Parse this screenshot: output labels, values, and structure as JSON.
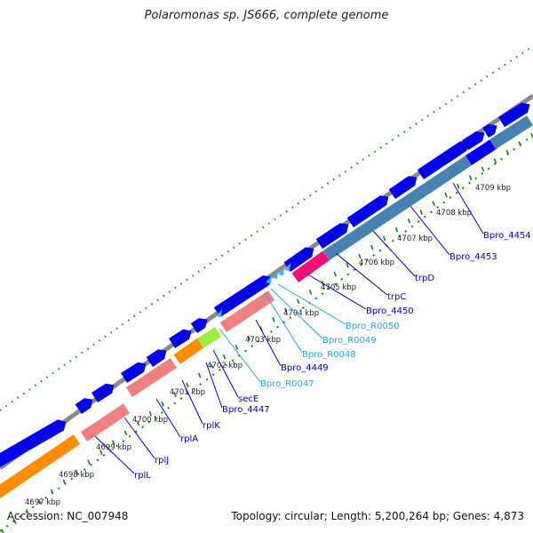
{
  "title": "Polaromonas sp. JS666, complete genome",
  "footer": {
    "accession": "Accession: NC_007948",
    "summary": "Topology: circular; Length: 5,200,264 bp; Genes: 4,873"
  },
  "colors": {
    "backbone": "#8a8a8a",
    "dots_outer": "#228b22",
    "ticks": "#1a7a1a",
    "cds_forward": "#0000ee",
    "cds_reverse": "#4682b4",
    "rpl_operon": "#f08080",
    "orange": "#ff8c00",
    "secE": "#99ee44",
    "trpD_magenta": "#ee1177",
    "rna": "#33bbee",
    "label_gene": "#0000cc",
    "label_rna": "#22aadd"
  },
  "scale_labels": [
    "4697 kbp",
    "4698 kbp",
    "4699 kbp",
    "4700 kbp",
    "4701 kbp",
    "4702 kbp",
    "4703 kbp",
    "4704 kbp",
    "4705 kbp",
    "4706 kbp",
    "4707 kbp",
    "4708 kbp",
    "4709 kbp"
  ],
  "gene_labels": [
    {
      "name": "rplL",
      "type": "gene"
    },
    {
      "name": "rplJ",
      "type": "gene"
    },
    {
      "name": "rplA",
      "type": "gene"
    },
    {
      "name": "rplK",
      "type": "gene"
    },
    {
      "name": "Bpro_4447",
      "type": "gene"
    },
    {
      "name": "secE",
      "type": "gene"
    },
    {
      "name": "Bpro_R0047",
      "type": "rna"
    },
    {
      "name": "Bpro_4449",
      "type": "gene"
    },
    {
      "name": "Bpro_R0048",
      "type": "rna"
    },
    {
      "name": "Bpro_R0049",
      "type": "rna"
    },
    {
      "name": "Bpro_R0050",
      "type": "rna"
    },
    {
      "name": "Bpro_4450",
      "type": "gene"
    },
    {
      "name": "trpC",
      "type": "gene"
    },
    {
      "name": "trpD",
      "type": "gene"
    },
    {
      "name": "Bpro_4453",
      "type": "gene"
    },
    {
      "name": "Bpro_4454",
      "type": "gene"
    }
  ]
}
